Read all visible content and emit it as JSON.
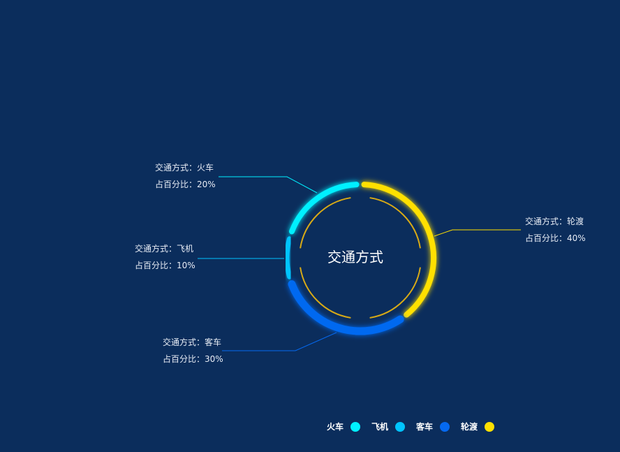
{
  "chart_data": {
    "type": "pie",
    "title": "交通方式",
    "label_prefix": "交通方式：",
    "percent_prefix": "占百分比：",
    "slices": [
      {
        "name": "火车",
        "value": 20,
        "color": "#00f0ff",
        "percent_text": "20%"
      },
      {
        "name": "飞机",
        "value": 10,
        "color": "#00c4ff",
        "percent_text": "10%"
      },
      {
        "name": "客车",
        "value": 30,
        "color": "#0569f0",
        "percent_text": "30%"
      },
      {
        "name": "轮渡",
        "value": 40,
        "color": "#ffe000",
        "percent_text": "40%"
      }
    ],
    "inner_ring_color": "#d8aa16",
    "legend_position": "bottom-right"
  },
  "labels": {
    "huoche": {
      "line1": "交通方式：火车",
      "line2": "占百分比：20%"
    },
    "feiji": {
      "line1": "交通方式：飞机",
      "line2": "占百分比：10%"
    },
    "keche": {
      "line1": "交通方式：客车",
      "line2": "占百分比：30%"
    },
    "lundu": {
      "line1": "交通方式：轮渡",
      "line2": "占百分比：40%"
    }
  },
  "legend": [
    {
      "label": "火车",
      "color": "#00f0ff"
    },
    {
      "label": "飞机",
      "color": "#00c4ff"
    },
    {
      "label": "客车",
      "color": "#0569f0"
    },
    {
      "label": "轮渡",
      "color": "#ffe000"
    }
  ]
}
